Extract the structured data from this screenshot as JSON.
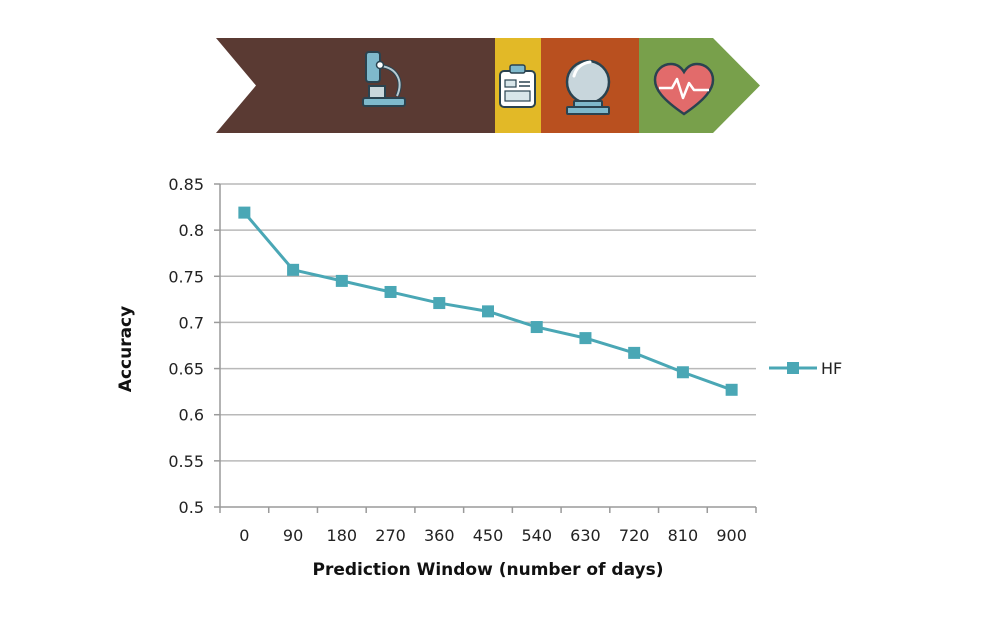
{
  "banner": {
    "icons": [
      "microscope-icon",
      "clipboard-icon",
      "crystal-ball-icon",
      "heart-rate-icon"
    ],
    "colors": {
      "brown": "#5a3a33",
      "yellow": "#e2b927",
      "orange": "#b9501f",
      "green": "#78a04b"
    }
  },
  "chart_data": {
    "type": "line",
    "title": "",
    "xlabel": "Prediction Window (number of days)",
    "ylabel": "Accuracy",
    "categories": [
      "0",
      "90",
      "180",
      "270",
      "360",
      "450",
      "540",
      "630",
      "720",
      "810",
      "900"
    ],
    "series": [
      {
        "name": "HF",
        "color": "#4aa7b5",
        "values": [
          0.819,
          0.757,
          0.745,
          0.733,
          0.721,
          0.712,
          0.695,
          0.683,
          0.667,
          0.646,
          0.627
        ]
      }
    ],
    "ylim": [
      0.5,
      0.85
    ],
    "yticks": [
      "0.85",
      "0.8",
      "0.75",
      "0.7",
      "0.65",
      "0.6",
      "0.55",
      "0.5"
    ],
    "grid": true,
    "legend_position": "right"
  }
}
